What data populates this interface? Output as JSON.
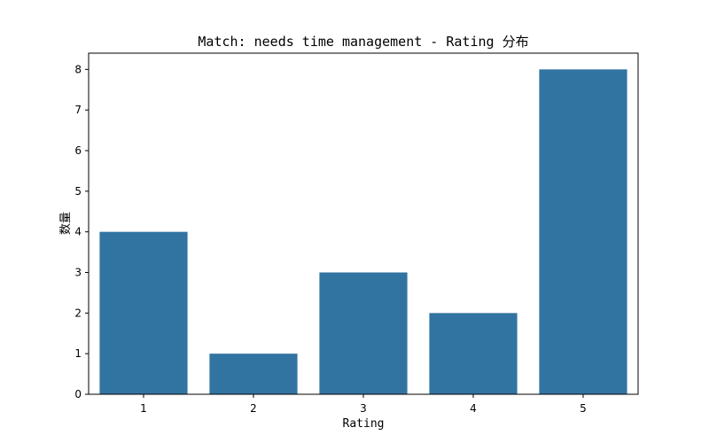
{
  "chart_data": {
    "type": "bar",
    "title": "Match: needs time management - Rating 分布",
    "xlabel": "Rating",
    "ylabel": "数量",
    "categories": [
      "1",
      "2",
      "3",
      "4",
      "5"
    ],
    "values": [
      4,
      1,
      3,
      2,
      8
    ],
    "ylim": [
      0,
      8.4
    ],
    "yticks": [
      0,
      1,
      2,
      3,
      4,
      5,
      6,
      7,
      8
    ],
    "bar_color": "#3274a1",
    "grid": false,
    "legend": "none"
  }
}
